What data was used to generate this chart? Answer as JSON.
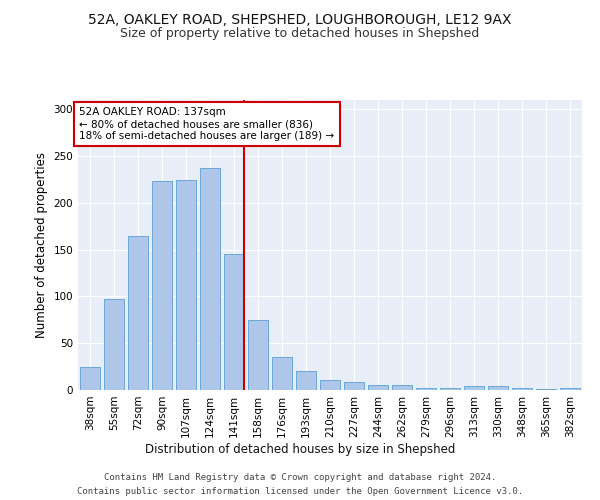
{
  "title1": "52A, OAKLEY ROAD, SHEPSHED, LOUGHBOROUGH, LE12 9AX",
  "title2": "Size of property relative to detached houses in Shepshed",
  "xlabel": "Distribution of detached houses by size in Shepshed",
  "ylabel": "Number of detached properties",
  "categories": [
    "38sqm",
    "55sqm",
    "72sqm",
    "90sqm",
    "107sqm",
    "124sqm",
    "141sqm",
    "158sqm",
    "176sqm",
    "193sqm",
    "210sqm",
    "227sqm",
    "244sqm",
    "262sqm",
    "279sqm",
    "296sqm",
    "313sqm",
    "330sqm",
    "348sqm",
    "365sqm",
    "382sqm"
  ],
  "values": [
    25,
    97,
    165,
    223,
    224,
    237,
    145,
    75,
    35,
    20,
    11,
    9,
    5,
    5,
    2,
    2,
    4,
    4,
    2,
    1,
    2
  ],
  "bar_color": "#aec6e8",
  "bar_edge_color": "#5a9fd4",
  "vline_index": 6,
  "vline_color": "#cc0000",
  "annotation_text": "52A OAKLEY ROAD: 137sqm\n← 80% of detached houses are smaller (836)\n18% of semi-detached houses are larger (189) →",
  "annotation_box_color": "#ffffff",
  "annotation_box_edge_color": "#cc0000",
  "ylim": [
    0,
    310
  ],
  "yticks": [
    0,
    50,
    100,
    150,
    200,
    250,
    300
  ],
  "background_color": "#e8eef8",
  "footer_line1": "Contains HM Land Registry data © Crown copyright and database right 2024.",
  "footer_line2": "Contains public sector information licensed under the Open Government Licence v3.0.",
  "title1_fontsize": 10,
  "title2_fontsize": 9,
  "xlabel_fontsize": 8.5,
  "ylabel_fontsize": 8.5,
  "tick_fontsize": 7.5,
  "annotation_fontsize": 7.5,
  "footer_fontsize": 6.5
}
